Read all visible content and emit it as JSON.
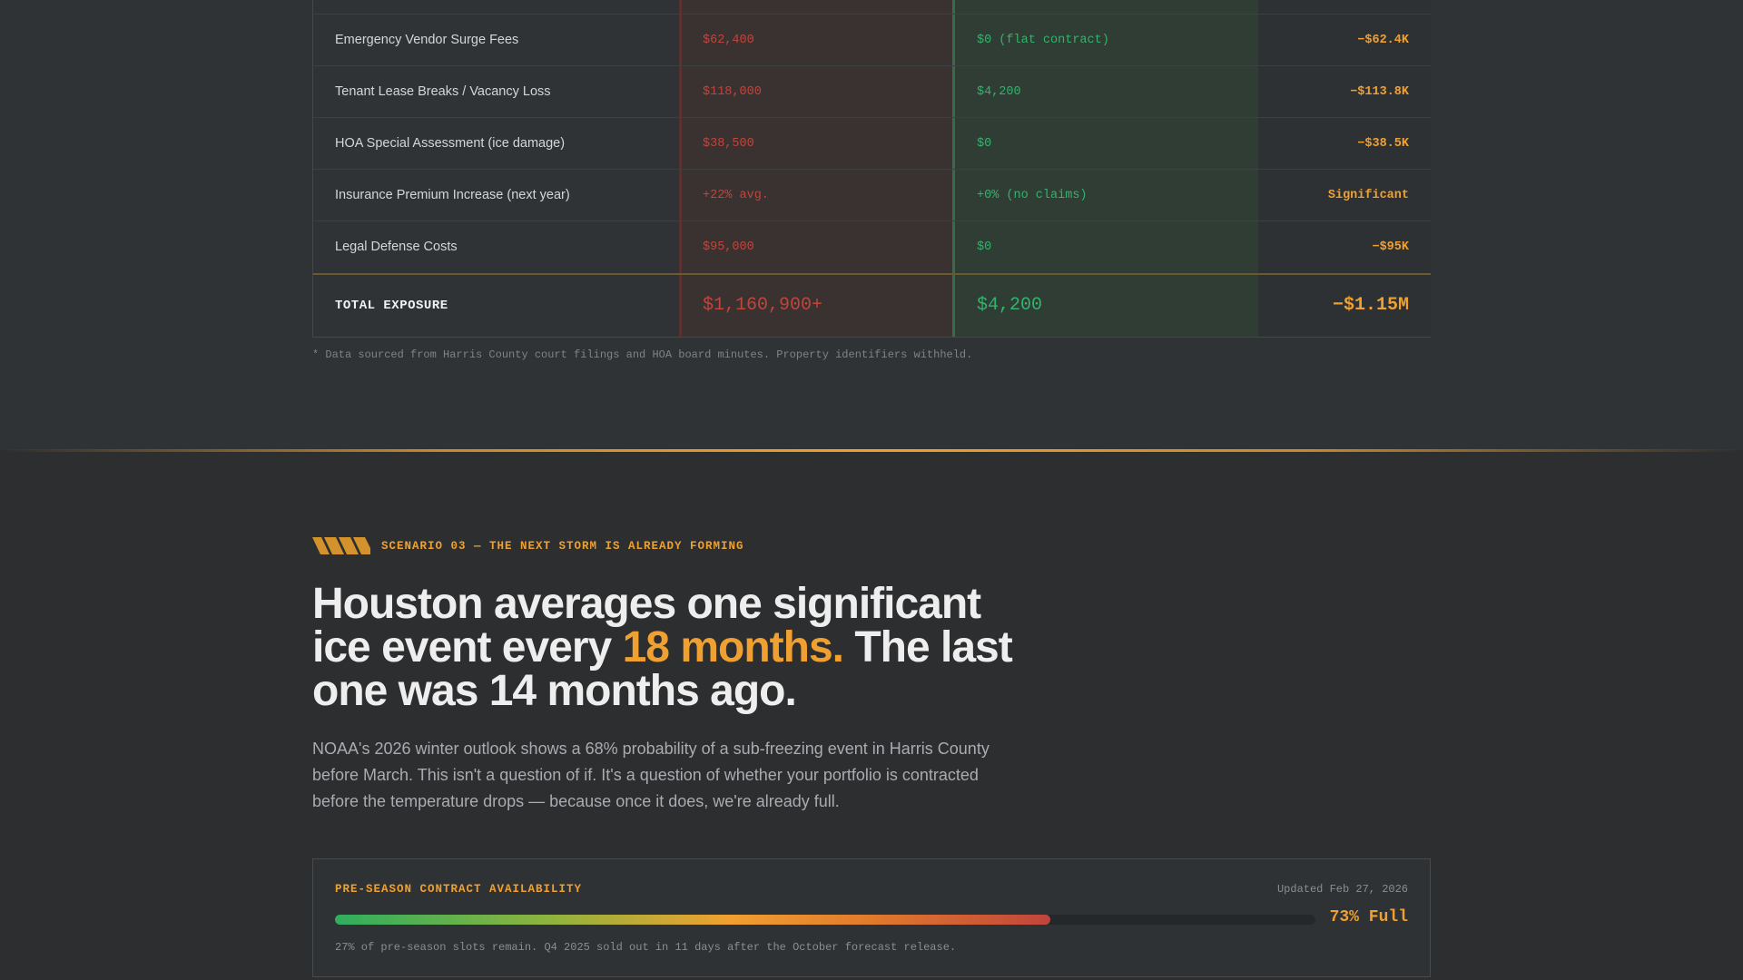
{
  "exposure_table": {
    "rows": [
      {
        "label": "",
        "before": "",
        "after": "",
        "delta": ""
      },
      {
        "label": "Emergency Vendor Surge Fees",
        "before": "$62,400",
        "after": "$0 (flat contract)",
        "delta": "−$62.4K"
      },
      {
        "label": "Tenant Lease Breaks / Vacancy Loss",
        "before": "$118,000",
        "after": "$4,200",
        "delta": "−$113.8K"
      },
      {
        "label": "HOA Special Assessment (ice damage)",
        "before": "$38,500",
        "after": "$0",
        "delta": "−$38.5K"
      },
      {
        "label": "Insurance Premium Increase (next year)",
        "before": "+22% avg.",
        "after": "+0% (no claims)",
        "delta": "Significant"
      },
      {
        "label": "Legal Defense Costs",
        "before": "$95,000",
        "after": "$0",
        "delta": "−$95K"
      }
    ],
    "total": {
      "label": "TOTAL EXPOSURE",
      "before": "$1,160,900+",
      "after": "$4,200",
      "delta": "−$1.15M"
    },
    "footnote": "* Data sourced from Harris County court filings and HOA board minutes. Property identifiers withheld."
  },
  "scenario": {
    "eyebrow": "SCENARIO 03 — THE NEXT STORM IS ALREADY FORMING",
    "icon": "hazard-stripes-icon",
    "headline_part1": "Houston averages one significant ice event every ",
    "headline_accent": "18 months.",
    "headline_part2": " The last one was 14 months ago.",
    "lede": "NOAA's 2026 winter outlook shows a 68% probability of a sub-freezing event in Harris County before March. This isn't a question of if. It's a question of whether your portfolio is contracted before the temperature drops — because once it does, we're already full."
  },
  "availability": {
    "title": "PRE-SEASON CONTRACT AVAILABILITY",
    "updated": "Updated Feb 27, 2026",
    "fill_percent": 73,
    "fill_label": "73% Full",
    "note": "27% of pre-season slots remain. Q4 2025 sold out in 11 days after the October forecast release."
  },
  "colors": {
    "accent": "#f0a030",
    "negative": "#c0453c",
    "positive": "#33b36b"
  }
}
